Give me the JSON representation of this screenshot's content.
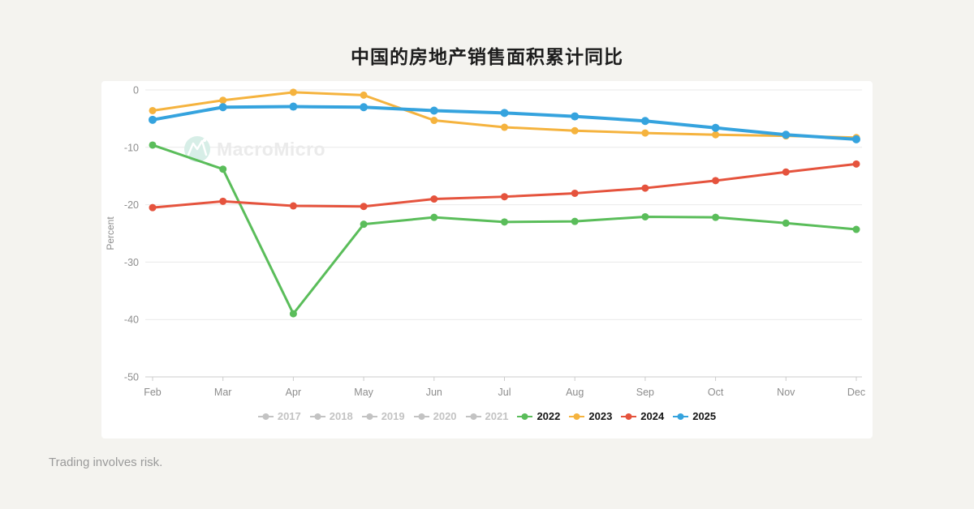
{
  "page": {
    "title": "中国的房地产销售面积累计同比",
    "footer": "Trading involves risk.",
    "background_color": "#f4f3ef",
    "card_color": "#ffffff"
  },
  "watermark": {
    "icon": "macromicro-logo-icon",
    "text": "MacroMicro",
    "circle_color": "#d7eee7",
    "glyph_color": "#ffffff",
    "text_color": "#ebebeb"
  },
  "chart_data": {
    "type": "line",
    "title": "中国的房地产销售面积累计同比",
    "xlabel": "",
    "ylabel": "Percent",
    "categories": [
      "Feb",
      "Mar",
      "Apr",
      "May",
      "Jun",
      "Jul",
      "Aug",
      "Sep",
      "Oct",
      "Nov",
      "Dec"
    ],
    "yticks": [
      0,
      -10,
      -20,
      -30,
      -40,
      -50
    ],
    "ylim": [
      -50,
      0
    ],
    "grid": true,
    "legend_position": "bottom",
    "series": [
      {
        "name": "2022",
        "color": "#5abd5a",
        "values": [
          -9.6,
          -13.8,
          -39.0,
          -23.4,
          -22.2,
          -23.0,
          -22.9,
          -22.1,
          -22.2,
          -23.2,
          -24.3
        ]
      },
      {
        "name": "2023",
        "color": "#f5b33e",
        "values": [
          -3.6,
          -1.8,
          -0.4,
          -0.9,
          -5.3,
          -6.5,
          -7.1,
          -7.5,
          -7.8,
          -8.0,
          -8.3
        ]
      },
      {
        "name": "2024",
        "color": "#e5533d",
        "values": [
          -20.5,
          -19.4,
          -20.2,
          -20.3,
          -19.0,
          -18.6,
          -18.0,
          -17.1,
          -15.8,
          -14.3,
          -12.9
        ]
      },
      {
        "name": "2025",
        "color": "#35a3de",
        "emphasis": true,
        "values": [
          -5.2,
          -3.0,
          -2.9,
          -3.0,
          -3.6,
          -4.0,
          -4.6,
          -5.4,
          -6.6,
          -7.8,
          -8.6
        ]
      }
    ],
    "axis_colors": {
      "grid": "#e9e9e9",
      "axis_line": "#cccccc",
      "tick_label": "#8d8d8d"
    }
  },
  "legend": {
    "inactive_color": "#c3c3c3",
    "items": [
      {
        "label": "2017",
        "active": false
      },
      {
        "label": "2018",
        "active": false
      },
      {
        "label": "2019",
        "active": false
      },
      {
        "label": "2020",
        "active": false
      },
      {
        "label": "2021",
        "active": false
      },
      {
        "label": "2022",
        "active": true,
        "color": "#5abd5a"
      },
      {
        "label": "2023",
        "active": true,
        "color": "#f5b33e"
      },
      {
        "label": "2024",
        "active": true,
        "color": "#e5533d"
      },
      {
        "label": "2025",
        "active": true,
        "color": "#35a3de"
      }
    ]
  }
}
